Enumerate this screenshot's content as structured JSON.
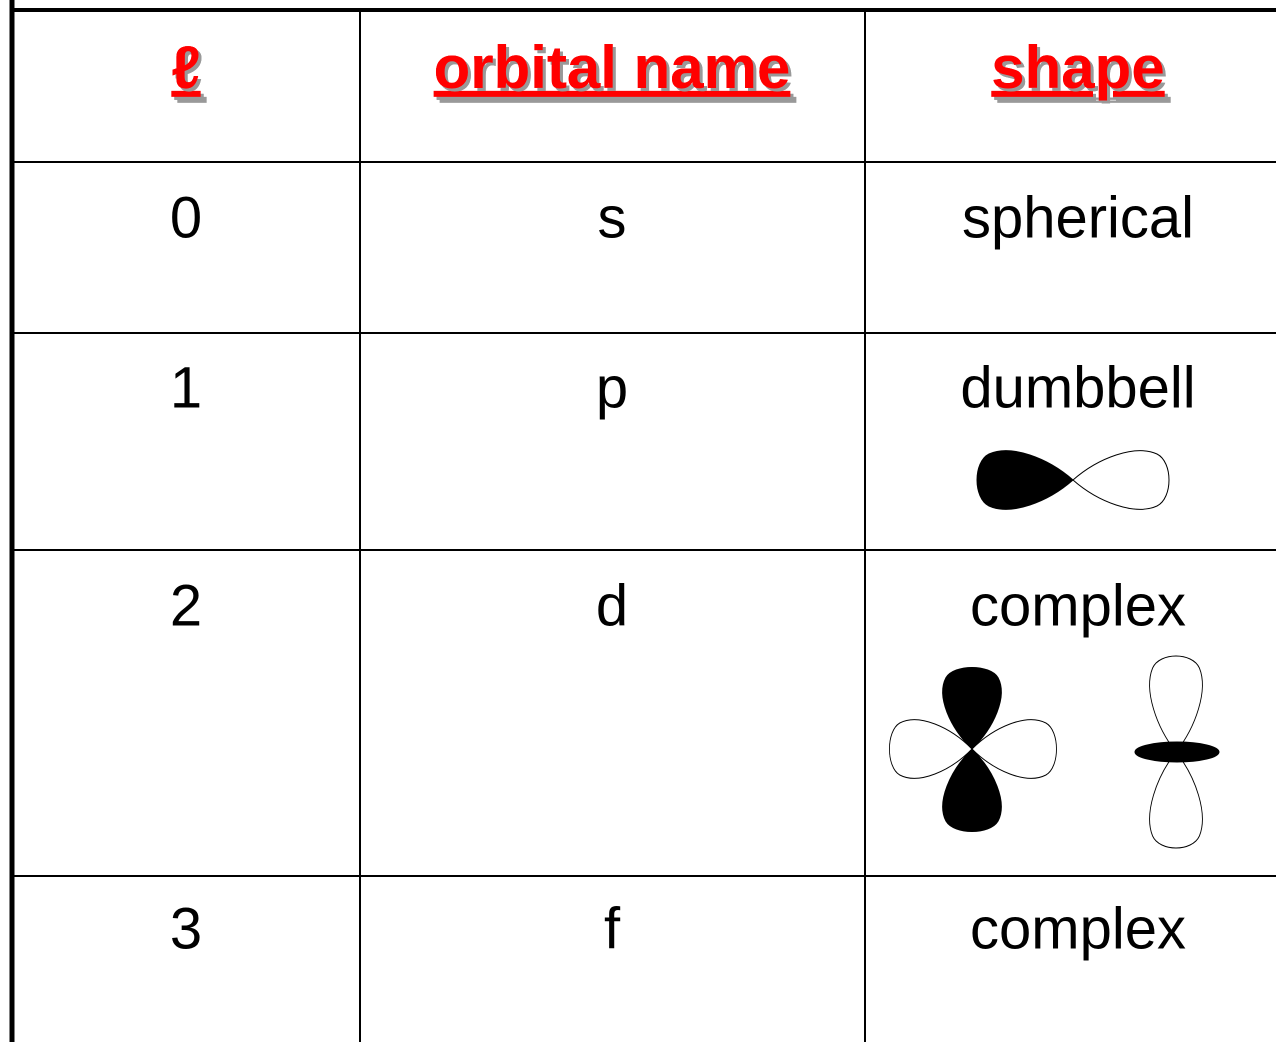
{
  "table": {
    "header": [
      "ℓ",
      "orbital name",
      "shape"
    ],
    "rows": [
      [
        "0",
        "s",
        "spherical"
      ],
      [
        "1",
        "p",
        "dumbbell"
      ],
      [
        "2",
        "d",
        "complex"
      ],
      [
        "3",
        "f",
        "complex"
      ]
    ]
  }
}
